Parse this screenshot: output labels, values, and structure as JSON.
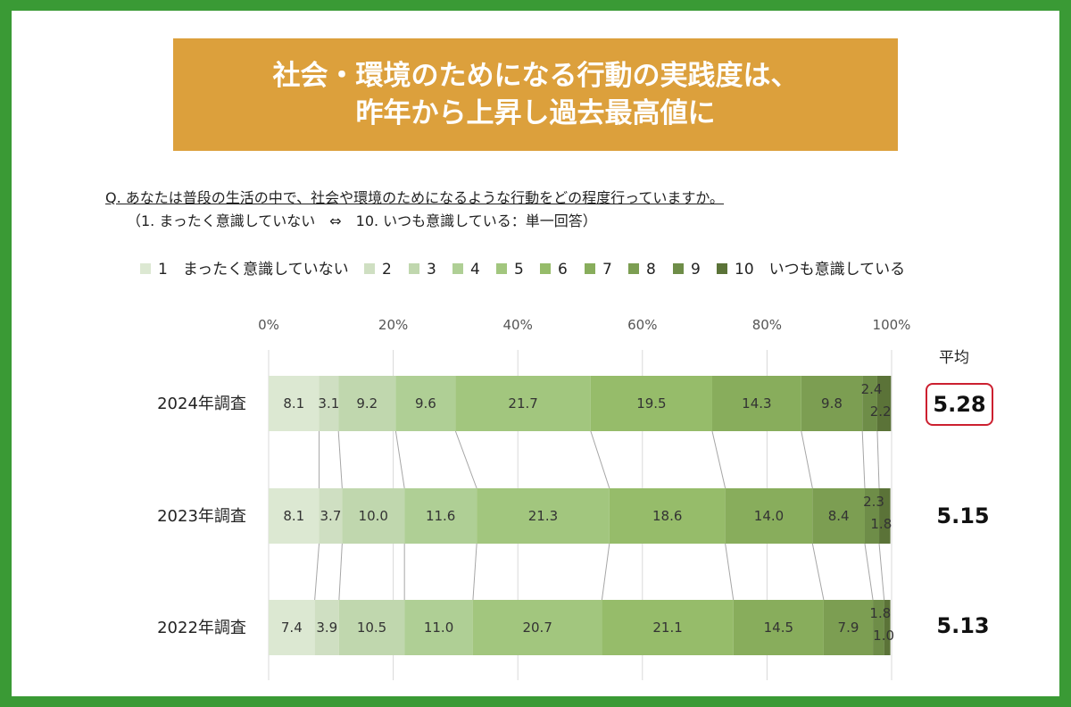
{
  "title": {
    "line1": "社会・環境のためになる行動の実践度は、",
    "line2": "昨年から上昇し過去最高値に"
  },
  "question": "Q. あなたは普段の生活の中で、社会や環境のためになるような行動をどの程度行っていますか。",
  "question_note": "（1. まったく意識していない　⇔　10. いつも意識している：単一回答）",
  "avg_header": "平均",
  "colors": {
    "scale": [
      "#dce8d2",
      "#cfdfc2",
      "#c0d7ae",
      "#afcf95",
      "#a2c67e",
      "#96bc6a",
      "#88ad5c",
      "#7c9e52",
      "#6e8d48",
      "#5b7338"
    ],
    "highlight": "#cc2030",
    "frame": "#3a9a35",
    "title_bg": "#dca03c"
  },
  "chart_data": {
    "type": "bar",
    "orientation": "horizontal-stacked-100",
    "categories": [
      "2024年調査",
      "2023年調査",
      "2022年調査"
    ],
    "legend": [
      "1　まったく意識していない",
      "2",
      "3",
      "4",
      "5",
      "6",
      "7",
      "8",
      "9",
      "10　いつも意識している"
    ],
    "xticks": [
      "0%",
      "20%",
      "40%",
      "60%",
      "80%",
      "100%"
    ],
    "series": [
      {
        "name": "1　まったく意識していない",
        "values": [
          8.1,
          8.1,
          7.4
        ]
      },
      {
        "name": "2",
        "values": [
          3.1,
          3.7,
          3.9
        ]
      },
      {
        "name": "3",
        "values": [
          9.2,
          10.0,
          10.5
        ]
      },
      {
        "name": "4",
        "values": [
          9.6,
          11.6,
          11.0
        ]
      },
      {
        "name": "5",
        "values": [
          21.7,
          21.3,
          20.7
        ]
      },
      {
        "name": "6",
        "values": [
          19.5,
          18.6,
          21.1
        ]
      },
      {
        "name": "7",
        "values": [
          14.3,
          14.0,
          14.5
        ]
      },
      {
        "name": "8",
        "values": [
          9.8,
          8.4,
          7.9
        ]
      },
      {
        "name": "9",
        "values": [
          2.4,
          2.3,
          1.8
        ]
      },
      {
        "name": "10　いつも意識している",
        "values": [
          2.2,
          1.8,
          1.0
        ]
      }
    ],
    "value_labels": [
      [
        "8.1",
        "3.1",
        "9.2",
        "9.6",
        "21.7",
        "19.5",
        "14.3",
        "9.8",
        "2.4",
        "2.2"
      ],
      [
        "8.1",
        "3.7",
        "10.0",
        "11.6",
        "21.3",
        "18.6",
        "14.0",
        "8.4",
        "2.3",
        "1.8"
      ],
      [
        "7.4",
        "3.9",
        "10.5",
        "11.0",
        "20.7",
        "21.1",
        "14.5",
        "7.9",
        "1.8",
        "1.0"
      ]
    ],
    "averages": [
      "5.28",
      "5.15",
      "5.13"
    ],
    "highlighted_average_index": 0,
    "xlim": [
      0,
      100
    ]
  }
}
